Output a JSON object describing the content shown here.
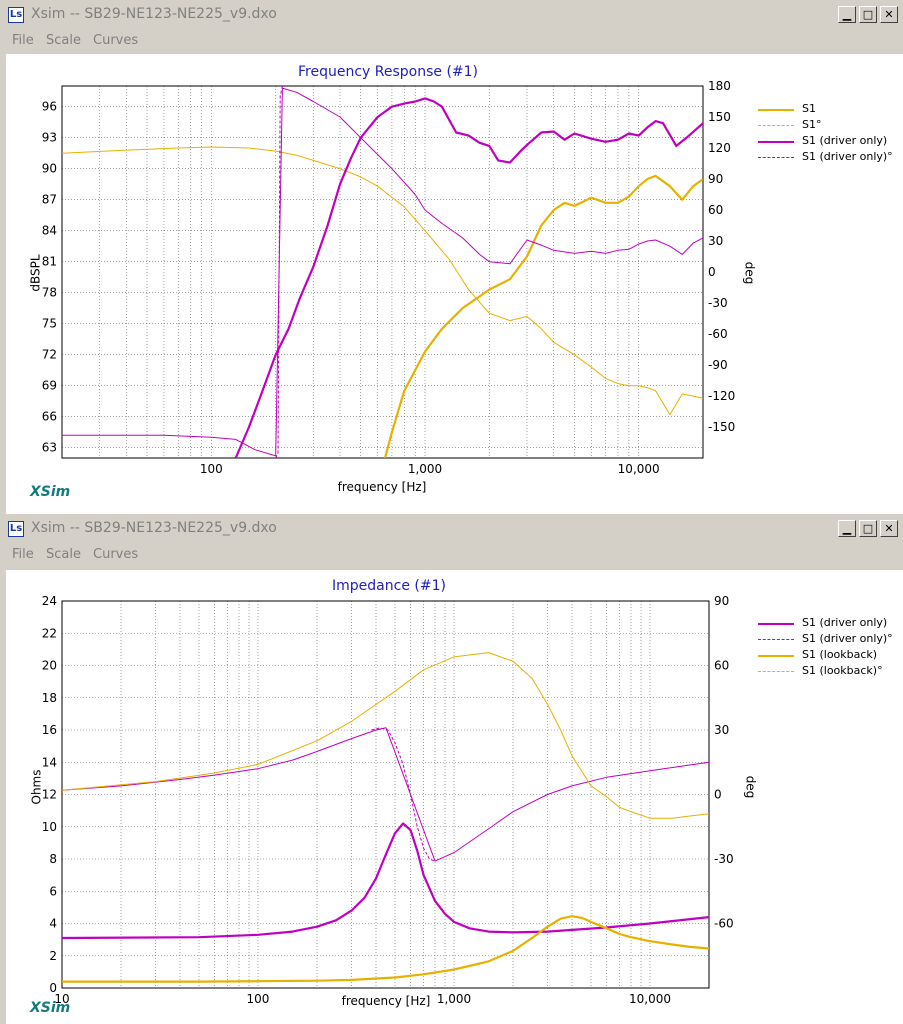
{
  "windows": [
    {
      "title": "Xsim -- SB29-NE123-NE225_v9.dxo",
      "icon_label": "Ls",
      "menu": [
        "File",
        "Scale",
        "Curves"
      ],
      "controls": [
        "minimize-icon",
        "maximize-icon",
        "close-icon"
      ],
      "plot": {
        "title": "Frequency Response (#1)",
        "xlabel": "frequency [Hz]",
        "ylabel": "dBSPL",
        "y2label": "deg",
        "brand": "XSim",
        "legend": [
          "S1",
          "S1°",
          "S1 (driver only)",
          "S1 (driver only)°"
        ]
      }
    },
    {
      "title": "Xsim -- SB29-NE123-NE225_v9.dxo",
      "icon_label": "Ls",
      "menu": [
        "File",
        "Scale",
        "Curves"
      ],
      "controls": [
        "minimize-icon",
        "maximize-icon",
        "close-icon"
      ],
      "plot": {
        "title": "Impedance (#1)",
        "xlabel": "frequency [Hz]",
        "ylabel": "Ohms",
        "y2label": "deg",
        "brand": "XSim",
        "legend": [
          "S1 (driver only)",
          "S1 (driver only)°",
          "S1 (lookback)",
          "S1 (lookback)°"
        ]
      }
    }
  ],
  "colors": {
    "magenta": "#c000c0",
    "gold": "#e8b000",
    "title_blue": "#2020c0",
    "brand_teal": "#137b80"
  },
  "chart_data": [
    {
      "type": "line",
      "title": "Frequency Response (#1)",
      "xlabel": "frequency [Hz]",
      "ylabel": "dBSPL",
      "y2label": "deg",
      "xscale": "log",
      "xlim": [
        20,
        20000
      ],
      "ylim": [
        62,
        98
      ],
      "y2lim": [
        -180,
        180
      ],
      "xticks": [
        100,
        1000,
        10000
      ],
      "xtick_labels": [
        "100",
        "1,000",
        "10,000"
      ],
      "yticks": [
        63,
        66,
        69,
        72,
        75,
        78,
        81,
        84,
        87,
        90,
        93,
        96
      ],
      "y2ticks": [
        -150,
        -120,
        -90,
        -60,
        -30,
        0,
        30,
        60,
        90,
        120,
        150,
        180
      ],
      "grid": true,
      "legend_position": "right",
      "series": [
        {
          "name": "S1",
          "axis": "y",
          "style": "solid-thick",
          "color": "#e8b000",
          "x": [
            650,
            700,
            800,
            1000,
            1200,
            1500,
            2000,
            2500,
            3000,
            3500,
            4000,
            4500,
            5000,
            5500,
            6000,
            7000,
            8000,
            9000,
            10000,
            11000,
            12000,
            14000,
            16000,
            18000,
            20000
          ],
          "y": [
            62,
            64.5,
            68.5,
            72.3,
            74.5,
            76.5,
            78.3,
            79.3,
            81.5,
            84.5,
            86.0,
            86.7,
            86.4,
            86.8,
            87.2,
            86.7,
            86.7,
            87.3,
            88.3,
            89.0,
            89.3,
            88.3,
            87.0,
            88.3,
            89.0
          ]
        },
        {
          "name": "S1°",
          "axis": "y2",
          "style": "solid-thin",
          "color": "#e8b000",
          "x": [
            20,
            40,
            70,
            100,
            150,
            200,
            250,
            300,
            400,
            500,
            600,
            800,
            1000,
            1300,
            1600,
            2000,
            2500,
            3000,
            3500,
            4000,
            5000,
            6000,
            7000,
            8000,
            9000,
            10000,
            11000,
            12000,
            14000,
            16000,
            20000
          ],
          "y": [
            115,
            118,
            120,
            121,
            120,
            117,
            113,
            108,
            100,
            92,
            83,
            63,
            40,
            12,
            -17,
            -40,
            -47,
            -43,
            -55,
            -68,
            -80,
            -92,
            -103,
            -108,
            -110,
            -110,
            -112,
            -115,
            -138,
            -118,
            -122
          ]
        },
        {
          "name": "S1 (driver only)",
          "axis": "y",
          "style": "solid-thick",
          "color": "#c000c0",
          "x": [
            130,
            150,
            170,
            200,
            230,
            260,
            300,
            350,
            400,
            450,
            500,
            600,
            700,
            800,
            900,
            1000,
            1100,
            1200,
            1400,
            1600,
            1800,
            2000,
            2200,
            2500,
            2800,
            3000,
            3500,
            4000,
            4500,
            5000,
            6000,
            7000,
            8000,
            9000,
            10000,
            11000,
            12000,
            13000,
            15000,
            17000,
            20000
          ],
          "y": [
            62,
            65,
            68,
            72,
            74.5,
            77.5,
            80.5,
            84.5,
            88.5,
            91,
            93,
            95,
            96,
            96.3,
            96.5,
            96.8,
            96.5,
            96,
            93.5,
            93.2,
            92.5,
            92.2,
            90.8,
            90.6,
            91.7,
            92.3,
            93.5,
            93.6,
            92.8,
            93.4,
            92.9,
            92.6,
            92.8,
            93.4,
            93.2,
            94,
            94.6,
            94.4,
            92.2,
            93.1,
            94.4
          ]
        },
        {
          "name": "S1 (driver only)°",
          "axis": "y2",
          "style": "dashed",
          "color": "#c000c0",
          "x": [
            200,
            205,
            210,
            215
          ],
          "y": [
            -180,
            -175,
            170,
            180
          ]
        },
        {
          "name": "",
          "axis": "y2",
          "style": "solid-thin",
          "color": "#c000c0",
          "x": [
            20,
            60,
            100,
            130,
            160,
            200,
            215,
            250,
            300,
            400,
            500,
            700,
            900,
            1000,
            1200,
            1500,
            1800,
            2000,
            2500,
            3000,
            3500,
            4000,
            5000,
            6000,
            7000,
            8000,
            9000,
            10000,
            11000,
            12000,
            14000,
            16000,
            18000,
            20000
          ],
          "y": [
            -158,
            -158,
            -160,
            -162,
            -172,
            -178,
            178,
            174,
            165,
            150,
            130,
            100,
            75,
            60,
            47,
            33,
            17,
            10,
            8,
            31,
            26,
            21,
            18,
            20,
            18,
            21,
            22,
            27,
            30,
            31,
            25,
            17,
            28,
            33
          ]
        }
      ]
    },
    {
      "type": "line",
      "title": "Impedance (#1)",
      "xlabel": "frequency [Hz]",
      "ylabel": "Ohms",
      "y2label": "deg",
      "xscale": "log",
      "xlim": [
        10,
        20000
      ],
      "ylim": [
        0,
        24
      ],
      "y2lim": [
        -90,
        90
      ],
      "xticks": [
        10,
        100,
        1000,
        10000
      ],
      "xtick_labels": [
        "10",
        "100",
        "1,000",
        "10,000"
      ],
      "yticks": [
        0,
        2,
        4,
        6,
        8,
        10,
        12,
        14,
        16,
        18,
        20,
        22,
        24
      ],
      "y2ticks": [
        -60,
        -30,
        0,
        30,
        60,
        90
      ],
      "grid": true,
      "legend_position": "right",
      "series": [
        {
          "name": "S1 (driver only)",
          "axis": "y",
          "style": "solid-thick",
          "color": "#c000c0",
          "x": [
            10,
            50,
            100,
            150,
            200,
            250,
            300,
            350,
            400,
            450,
            500,
            550,
            600,
            650,
            700,
            800,
            900,
            1000,
            1200,
            1500,
            2000,
            3000,
            4000,
            6000,
            10000,
            20000
          ],
          "y": [
            3.1,
            3.15,
            3.3,
            3.5,
            3.8,
            4.2,
            4.8,
            5.6,
            6.8,
            8.3,
            9.6,
            10.2,
            9.8,
            8.5,
            7.0,
            5.4,
            4.6,
            4.1,
            3.7,
            3.5,
            3.45,
            3.5,
            3.6,
            3.75,
            4.0,
            4.4
          ]
        },
        {
          "name": "S1 (driver only)°",
          "axis": "y2",
          "style": "dashed",
          "color": "#c000c0",
          "x": [
            380,
            420,
            460,
            500,
            550,
            600,
            650,
            700,
            750,
            800
          ],
          "y": [
            30,
            31,
            30,
            24,
            14,
            0,
            -15,
            -25,
            -30,
            -31
          ]
        },
        {
          "name": "",
          "axis": "y2",
          "style": "solid-thin",
          "color": "#c000c0",
          "x": [
            10,
            20,
            40,
            60,
            100,
            150,
            200,
            300,
            400,
            450,
            800,
            1000,
            1500,
            2000,
            3000,
            4000,
            6000,
            10000,
            20000
          ],
          "y": [
            2,
            4,
            7,
            9,
            12,
            16,
            20,
            26,
            30,
            31,
            -31,
            -27,
            -16,
            -8,
            0,
            4,
            8,
            11,
            15
          ]
        },
        {
          "name": "S1 (lookback)",
          "axis": "y",
          "style": "solid-thick",
          "color": "#e8b000",
          "x": [
            10,
            50,
            100,
            200,
            300,
            500,
            700,
            1000,
            1500,
            2000,
            2500,
            3000,
            3500,
            4000,
            4500,
            5000,
            6000,
            7000,
            8000,
            10000,
            13000,
            16000,
            20000
          ],
          "y": [
            0.4,
            0.4,
            0.42,
            0.45,
            0.5,
            0.65,
            0.85,
            1.15,
            1.65,
            2.3,
            3.1,
            3.8,
            4.3,
            4.45,
            4.35,
            4.1,
            3.7,
            3.35,
            3.15,
            2.9,
            2.7,
            2.55,
            2.45
          ]
        },
        {
          "name": "S1 (lookback)°",
          "axis": "y2",
          "style": "solid-thin",
          "color": "#e8b000",
          "x": [
            10,
            30,
            60,
            100,
            200,
            300,
            500,
            700,
            1000,
            1500,
            2000,
            2500,
            3000,
            3500,
            4000,
            5000,
            6000,
            7000,
            8000,
            10000,
            13000,
            16000,
            20000
          ],
          "y": [
            2,
            6,
            10,
            14,
            25,
            34,
            48,
            58,
            64,
            66,
            62,
            54,
            42,
            30,
            18,
            4,
            -1,
            -6,
            -8,
            -11,
            -11,
            -10,
            -9
          ]
        }
      ]
    }
  ]
}
